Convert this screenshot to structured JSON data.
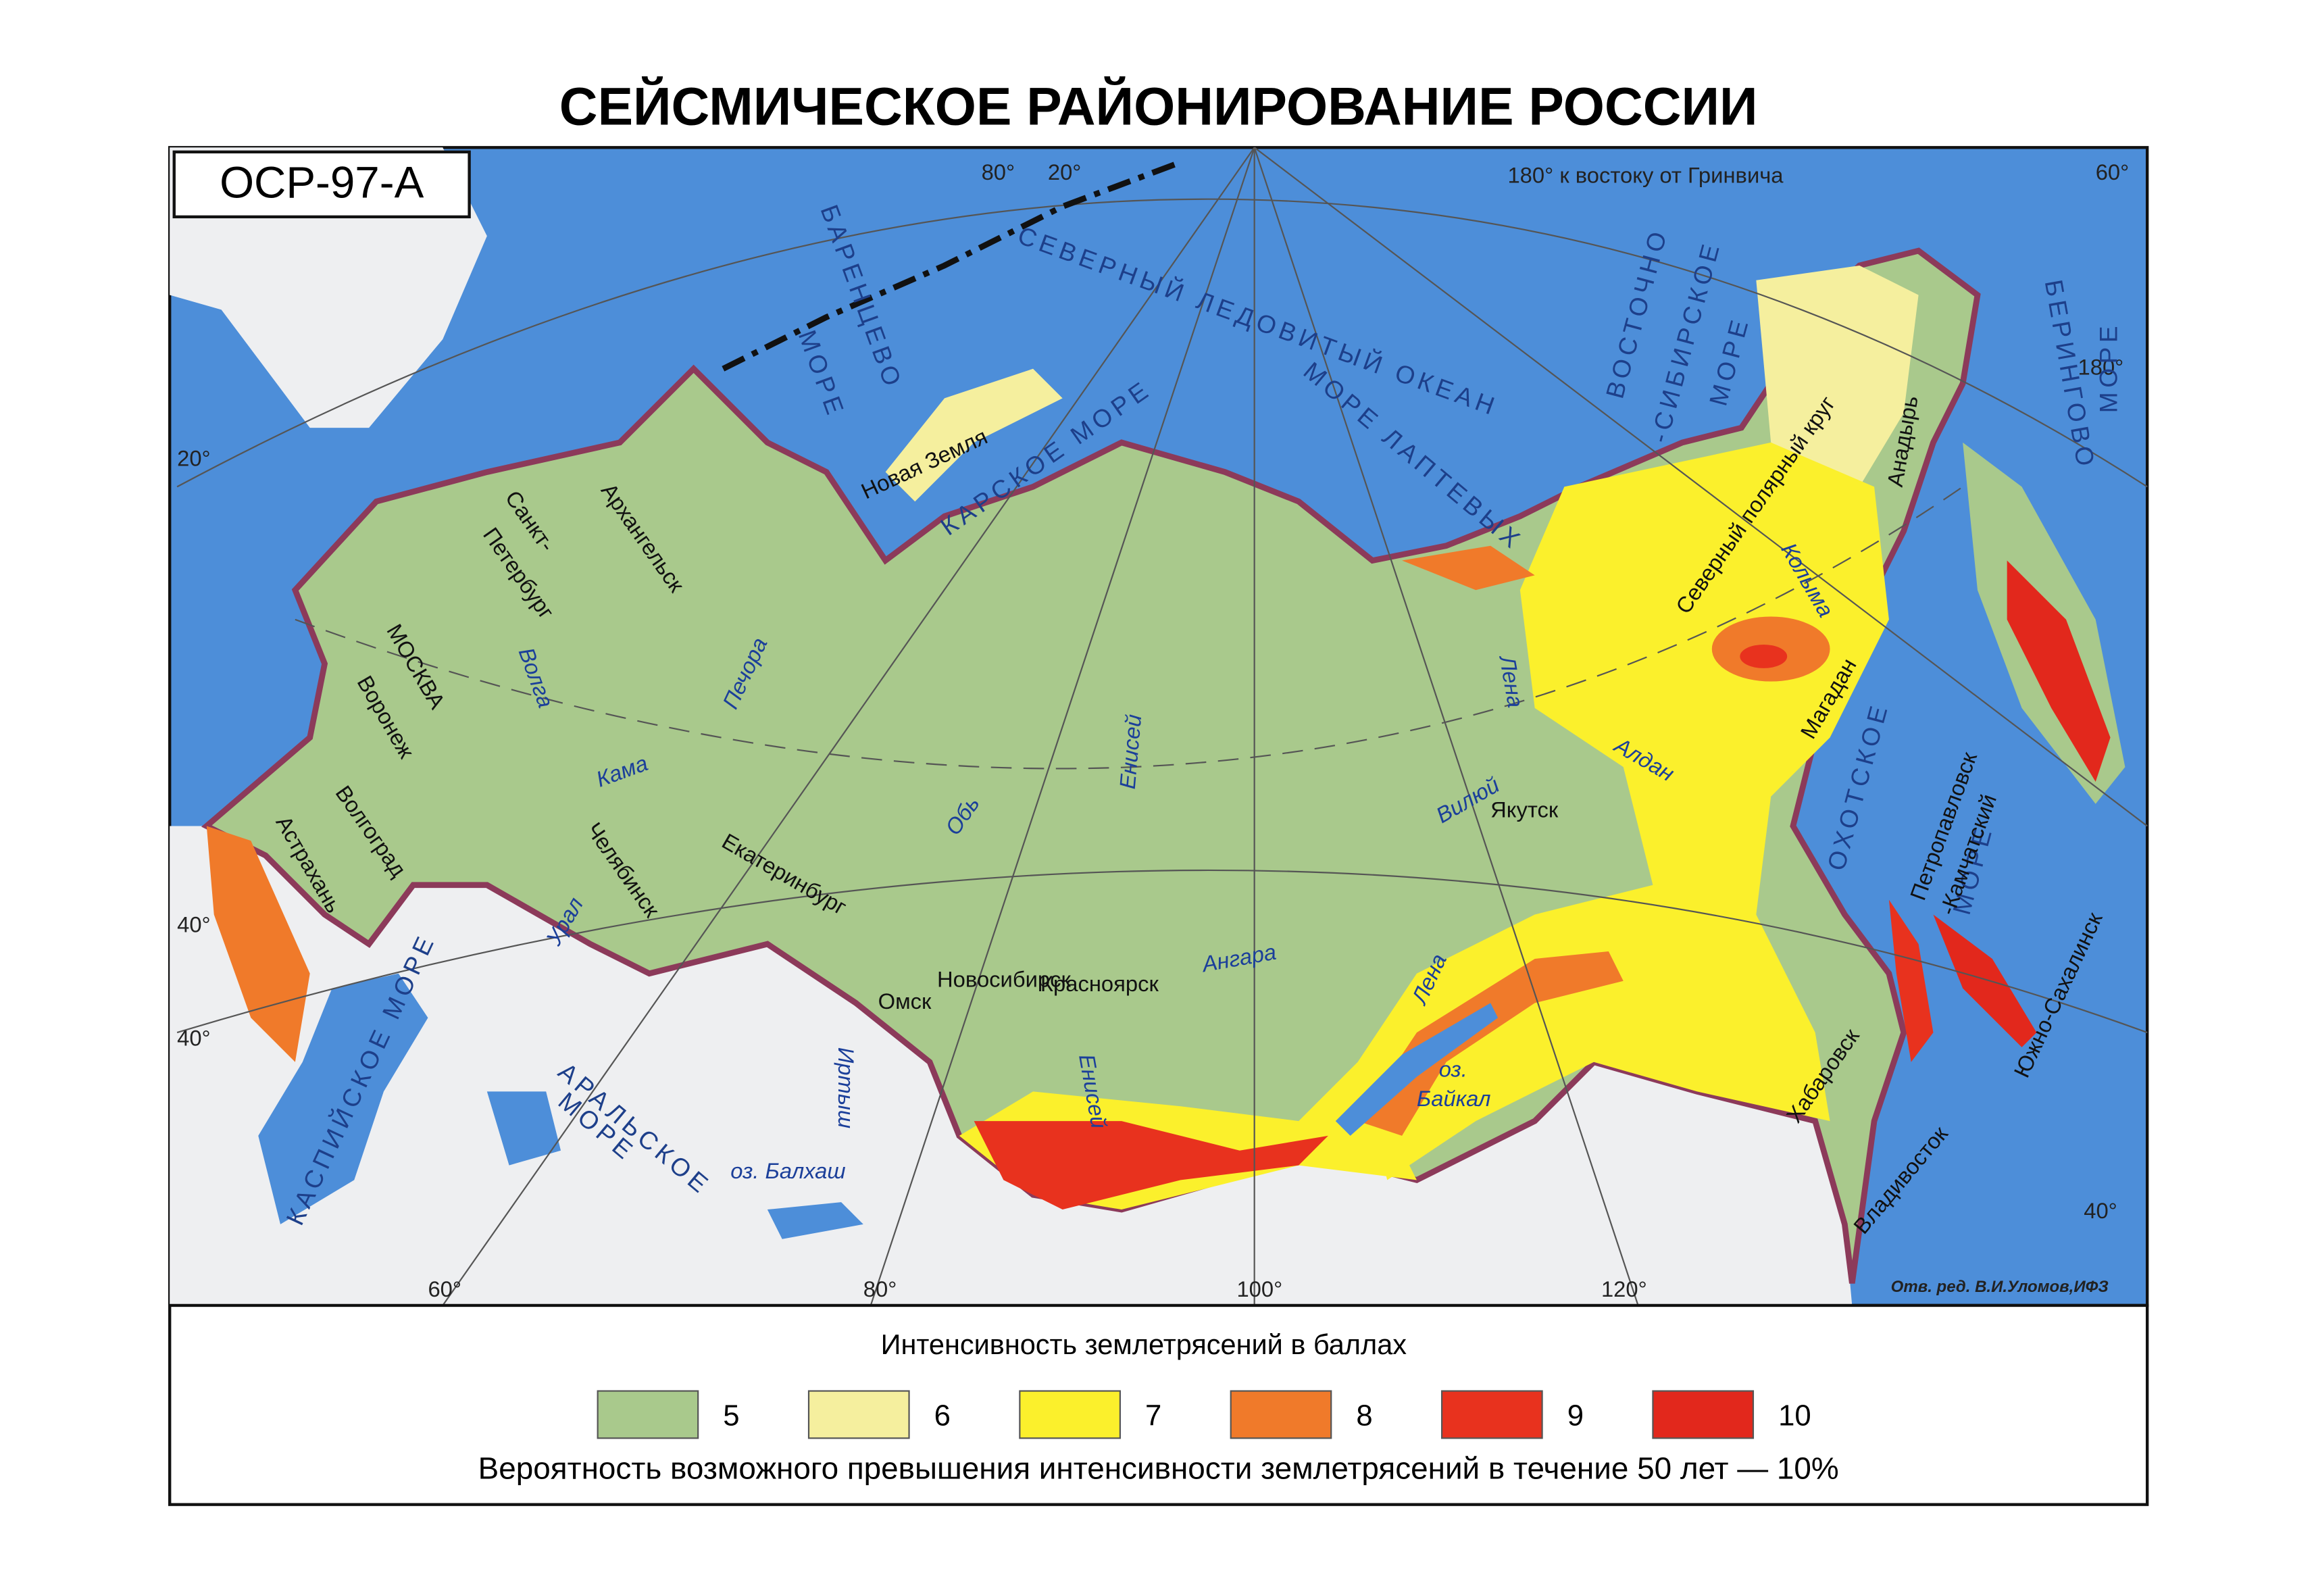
{
  "title": "СЕЙСМИЧЕСКОЕ РАЙОНИРОВАНИЕ РОССИИ",
  "map": {
    "badge": "ОСР-97-А",
    "meridian_note": "180° к востоку от Гринвича",
    "credit": "Отв. ред. В.И.Уломов,ИФЗ",
    "graticule_labels": [
      "80°",
      "20°",
      "60°",
      "20°",
      "180°",
      "40°",
      "40°",
      "60°",
      "80°",
      "100°",
      "120°",
      "40°"
    ],
    "water": [
      "БАРЕНЦЕВО",
      "МОРЕ",
      "КАРСКОЕ МОРЕ",
      "СЕВЕРНЫЙ ЛЕДОВИТЫЙ ОКЕАН",
      "МОРЕ ЛАПТЕВЫХ",
      "ВОСТОЧНО",
      "-СИБИРСКОЕ",
      "МОРЕ",
      "БЕРИНГОВО",
      "МОРЕ",
      "ОХОТСКОЕ",
      "МОРЕ",
      "КАСПИЙСКОЕ МОРЕ",
      "АРАЛЬСКОЕ",
      "МОРЕ",
      "оз. Балхаш",
      "оз.",
      "Байкал"
    ],
    "places": [
      "Новая Земля",
      "Санкт-",
      "Петербург",
      "Архангельск",
      "МОСКВА",
      "Воронеж",
      "Волгоград",
      "Астрахань",
      "Челябинск",
      "Екатеринбург",
      "Омск",
      "Новосибирск",
      "Красноярск",
      "Якутск",
      "Магадан",
      "Анадырь",
      "Петропавловск",
      "-Камчатский",
      "Южно-Сахалинск",
      "Хабаровск",
      "Владивосток",
      "Северный полярный круг"
    ],
    "rivers": [
      "Волга",
      "Печора",
      "Кама",
      "Урал",
      "Обь",
      "Енисей",
      "Иртыш",
      "Ангара",
      "Енисей",
      "Лена",
      "Лена",
      "Вилюй",
      "Алдан",
      "Колыма"
    ]
  },
  "legend": {
    "title": "Интенсивность землетрясений в баллах",
    "items": [
      {
        "label": "5",
        "color": "#a9c98c"
      },
      {
        "label": "6",
        "color": "#f5ef9e"
      },
      {
        "label": "7",
        "color": "#fbf02c"
      },
      {
        "label": "8",
        "color": "#f07a2a"
      },
      {
        "label": "9",
        "color": "#e8321e"
      },
      {
        "label": "10",
        "color": "#e2281c"
      }
    ],
    "note": "Вероятность возможного превышения интенсивности землетрясений в течение 50 лет — 10%"
  }
}
